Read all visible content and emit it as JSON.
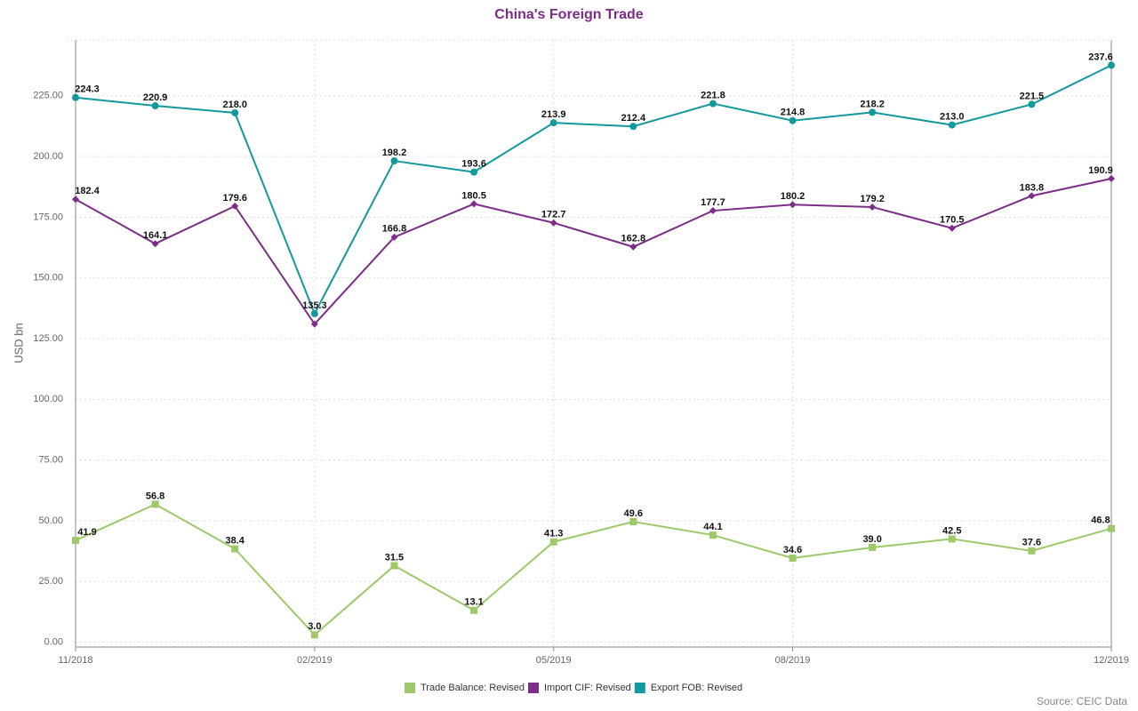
{
  "chart_data": {
    "type": "line",
    "title": "China's Foreign Trade",
    "y_label": "USD bn",
    "source": "Source: CEIC Data",
    "categories": [
      "11/2018",
      null,
      null,
      "02/2019",
      null,
      null,
      "05/2019",
      null,
      null,
      "08/2019",
      null,
      null,
      null,
      "12/2019"
    ],
    "ylim": [
      -2,
      248
    ],
    "yticks": [
      {
        "value": 0,
        "label": "0.00"
      },
      {
        "value": 25,
        "label": "25.00"
      },
      {
        "value": 50,
        "label": "50.00"
      },
      {
        "value": 75,
        "label": "75.00"
      },
      {
        "value": 100,
        "label": "100.00"
      },
      {
        "value": 125,
        "label": "125.00"
      },
      {
        "value": 150,
        "label": "150.00"
      },
      {
        "value": 175,
        "label": "175.00"
      },
      {
        "value": 200,
        "label": "200.00"
      },
      {
        "value": 225,
        "label": "225.00"
      }
    ],
    "grid": true,
    "legend": "bottom",
    "series": [
      {
        "name": "Trade Balance: Revised",
        "color": "#9dc96a",
        "marker": "square",
        "values": [
          41.9,
          56.8,
          38.4,
          3.0,
          31.5,
          13.1,
          41.3,
          49.6,
          44.1,
          34.6,
          39.0,
          42.5,
          37.6,
          46.8
        ],
        "value_labels": [
          "41.9",
          "56.8",
          "38.4",
          "3.0",
          "31.5",
          "13.1",
          "41.3",
          "49.6",
          "44.1",
          "34.6",
          "39.0",
          "42.5",
          "37.6",
          "46.8"
        ]
      },
      {
        "name": "Import CIF: Revised",
        "color": "#7b2d87",
        "marker": "diamond",
        "values": [
          182.4,
          164.1,
          179.6,
          131.0,
          166.8,
          180.5,
          172.7,
          162.8,
          177.7,
          180.2,
          179.2,
          170.5,
          183.8,
          190.9
        ],
        "value_labels": [
          "182.4",
          "164.1",
          "179.6",
          null,
          "166.8",
          "180.5",
          "172.7",
          "162.8",
          "177.7",
          "180.2",
          "179.2",
          "170.5",
          "183.8",
          "190.9"
        ]
      },
      {
        "name": "Export FOB: Revised",
        "color": "#12999b",
        "marker": "circle",
        "values": [
          224.3,
          220.9,
          218.0,
          135.3,
          198.2,
          193.6,
          213.9,
          212.4,
          221.8,
          214.8,
          218.2,
          213.0,
          221.5,
          237.6
        ],
        "value_labels": [
          "224.3",
          "220.9",
          "218.0",
          "135.3",
          "198.2",
          "193.6",
          "213.9",
          "212.4",
          "221.8",
          "214.8",
          "218.2",
          "213.0",
          "221.5",
          "237.6"
        ]
      }
    ]
  }
}
